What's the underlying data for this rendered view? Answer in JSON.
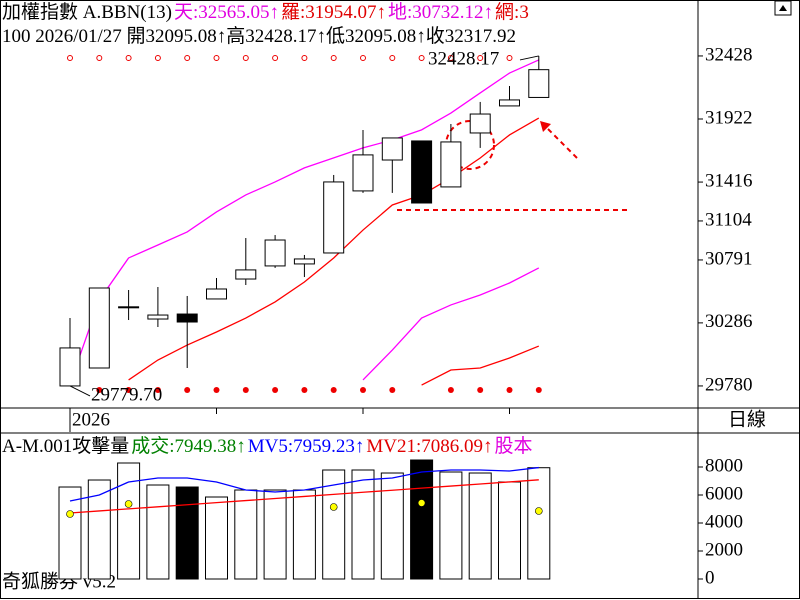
{
  "header": {
    "title": "加權指數 A.BBN(13)",
    "indicators": [
      {
        "text": "天:32565.05↑",
        "color": "#e000e0"
      },
      {
        "text": "羅:31954.07↑",
        "color": "#e00000"
      },
      {
        "text": "地:30732.12↑",
        "color": "#e000e0"
      },
      {
        "text": "網:3",
        "color": "#e00000"
      }
    ],
    "info": "100 2026/01/27 開32095.08↑高32428.17↑低32095.08↑收32317.92"
  },
  "footer": "奇狐勝券 v5.2",
  "chart_data": [
    {
      "type": "candlestick",
      "period_label": "日線",
      "categories": [
        "2026",
        null,
        null,
        null,
        null,
        null,
        null,
        null,
        null,
        null,
        null,
        null,
        null,
        null,
        null,
        null,
        null
      ],
      "open": [
        29780,
        29924,
        30410,
        30317,
        30357,
        30478,
        30638,
        30743,
        30759,
        30847,
        31345,
        31593,
        31746,
        31377,
        31810,
        32027,
        32095.08
      ],
      "high": [
        30325,
        30566,
        30550,
        30574,
        30502,
        30646,
        30967,
        30991,
        30831,
        31473,
        31834,
        31770,
        31746,
        31882,
        32059,
        32187,
        32428.17
      ],
      "low": [
        29779.7,
        29924,
        30309,
        30253,
        29924,
        30478,
        30590,
        30727,
        30654,
        30847,
        31329,
        31329,
        31248,
        31377,
        31690,
        32027,
        32095.08
      ],
      "close": [
        30085,
        30566,
        30415,
        30349,
        30293,
        30558,
        30711,
        30951,
        30799,
        31417,
        31634,
        31770,
        31248,
        31738,
        31962,
        32075,
        32317.92
      ],
      "up_color": "#ffffff",
      "down_color": "#000000",
      "lines": [
        {
          "color": "#ff00ff",
          "values": [
            29795,
            30470,
            30807,
            30911,
            31016,
            31176,
            31313,
            31417,
            31530,
            31610,
            31690,
            31754,
            31835,
            31970,
            32131,
            32291,
            32396
          ]
        },
        {
          "color": "#ff0000",
          "values": [
            null,
            null,
            29828,
            29988,
            30108,
            30213,
            30325,
            30454,
            30614,
            30807,
            31031,
            31232,
            31312,
            31449,
            31609,
            31794,
            31930
          ]
        },
        {
          "color": "#ff00ff",
          "values": [
            null,
            null,
            null,
            null,
            null,
            null,
            null,
            null,
            null,
            null,
            29828,
            30068,
            30325,
            30430,
            30510,
            30606,
            30727
          ]
        },
        {
          "color": "#ff0000",
          "values": [
            null,
            null,
            null,
            null,
            null,
            null,
            null,
            null,
            null,
            null,
            null,
            null,
            29787,
            29908,
            29924,
            30004,
            30100
          ]
        }
      ],
      "annotations": [
        "32428.17",
        "29779.70"
      ],
      "ylim": [
        29603,
        32877
      ],
      "yticks": [
        32428,
        31922,
        31416,
        31104,
        30791,
        30286,
        29780
      ]
    },
    {
      "type": "bar",
      "title": "A-M.001攻擊量",
      "indicators": [
        {
          "text": "成交:7949.38↑",
          "color": "#008000"
        },
        {
          "text": "MV5:7959.23↑",
          "color": "#0000ff"
        },
        {
          "text": "MV21:7086.09↑",
          "color": "#e00000"
        },
        {
          "text": "股本",
          "color": "#e000e0"
        }
      ],
      "values": [
        6571,
        7071,
        8286,
        6714,
        6571,
        5857,
        6357,
        6357,
        6357,
        7786,
        7786,
        7571,
        8500,
        7643,
        7571,
        6929,
        7949.38
      ],
      "colors": [
        "#ffffff",
        "#ffffff",
        "#ffffff",
        "#ffffff",
        "#000000",
        "#ffffff",
        "#ffffff",
        "#ffffff",
        "#ffffff",
        "#ffffff",
        "#ffffff",
        "#ffffff",
        "#000000",
        "#ffffff",
        "#ffffff",
        "#ffffff",
        "#ffffff"
      ],
      "lines": [
        {
          "color": "#0000ff",
          "values": [
            5571,
            6000,
            6929,
            7214,
            7214,
            6929,
            6357,
            6214,
            6357,
            6714,
            7071,
            7214,
            7643,
            7786,
            7786,
            7714,
            7959.23
          ]
        },
        {
          "color": "#ff0000",
          "values": [
            4714,
            4862,
            5010,
            5158,
            5306,
            5454,
            5602,
            5750,
            5898,
            6046,
            6194,
            6342,
            6490,
            6638,
            6786,
            6934,
            7086.09
          ]
        }
      ],
      "ylim": [
        0,
        10429
      ],
      "yticks": [
        8000,
        6000,
        4000,
        2000,
        0
      ]
    }
  ]
}
